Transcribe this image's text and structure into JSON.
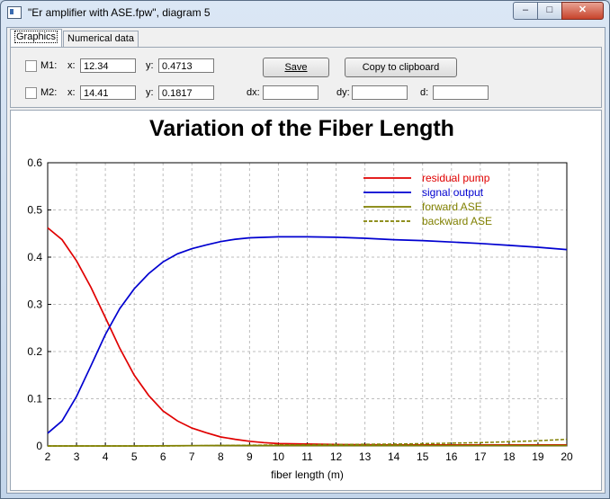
{
  "window": {
    "title": "\"Er amplifier with ASE.fpw\", diagram 5",
    "min_glyph": "‒",
    "max_glyph": "□",
    "close_glyph": "✕"
  },
  "tabs": [
    {
      "label": "Graphics",
      "active": true
    },
    {
      "label": "Numerical data",
      "active": false
    }
  ],
  "markers": {
    "m1": {
      "label": "M1:",
      "x_label": "x:",
      "x": "12.34",
      "y_label": "y:",
      "y": "0.4713",
      "checked": false
    },
    "m2": {
      "label": "M2:",
      "x_label": "x:",
      "x": "14.41",
      "y_label": "y:",
      "y": "0.1817",
      "checked": false
    },
    "dx_label": "dx:",
    "dx": "",
    "dy_label": "dy:",
    "dy": "",
    "d_label": "d:",
    "d": ""
  },
  "buttons": {
    "save": "Save",
    "copy": "Copy to clipboard"
  },
  "chart_data": {
    "type": "line",
    "title": "Variation of the Fiber Length",
    "xlabel": "fiber length (m)",
    "ylabel": "",
    "xlim": [
      2,
      20
    ],
    "ylim": [
      0,
      0.6
    ],
    "xticks": [
      2,
      3,
      4,
      5,
      6,
      7,
      8,
      9,
      10,
      11,
      12,
      13,
      14,
      15,
      16,
      17,
      18,
      19,
      20
    ],
    "yticks": [
      0,
      0.1,
      0.2,
      0.3,
      0.4,
      0.5,
      0.6
    ],
    "grid": true,
    "legend": "top-right",
    "series": [
      {
        "name": "residual pump",
        "color": "#e00000",
        "dash": false,
        "x": [
          2,
          2.5,
          3,
          3.5,
          4,
          4.5,
          5,
          5.5,
          6,
          6.5,
          7,
          7.5,
          8,
          8.5,
          9,
          9.5,
          10,
          11,
          12,
          14,
          16,
          18,
          20
        ],
        "y": [
          0.462,
          0.437,
          0.392,
          0.336,
          0.272,
          0.207,
          0.15,
          0.107,
          0.074,
          0.053,
          0.038,
          0.028,
          0.019,
          0.014,
          0.01,
          0.007,
          0.005,
          0.004,
          0.003,
          0.002,
          0.002,
          0.002,
          0.002
        ]
      },
      {
        "name": "signal output",
        "color": "#0000d0",
        "dash": false,
        "x": [
          2,
          2.5,
          3,
          3.5,
          4,
          4.5,
          5,
          5.5,
          6,
          6.5,
          7,
          7.5,
          8,
          8.5,
          9,
          10,
          11,
          12,
          13,
          14,
          15,
          16,
          17,
          18,
          19,
          20
        ],
        "y": [
          0.027,
          0.053,
          0.105,
          0.17,
          0.236,
          0.291,
          0.333,
          0.365,
          0.39,
          0.407,
          0.418,
          0.426,
          0.433,
          0.438,
          0.441,
          0.443,
          0.443,
          0.442,
          0.44,
          0.437,
          0.435,
          0.432,
          0.429,
          0.425,
          0.421,
          0.416
        ]
      },
      {
        "name": "forward ASE",
        "color": "#808000",
        "dash": false,
        "x": [
          2,
          5,
          8,
          11,
          14,
          17,
          20
        ],
        "y": [
          0.0,
          0.0,
          0.001,
          0.001,
          0.001,
          0.001,
          0.001
        ]
      },
      {
        "name": "backward ASE",
        "color": "#808000",
        "dash": true,
        "x": [
          2,
          6,
          8,
          10,
          12,
          14,
          16,
          17,
          18,
          19,
          20
        ],
        "y": [
          0.0,
          0.0,
          0.001,
          0.002,
          0.003,
          0.004,
          0.006,
          0.007,
          0.009,
          0.011,
          0.014
        ]
      }
    ]
  }
}
